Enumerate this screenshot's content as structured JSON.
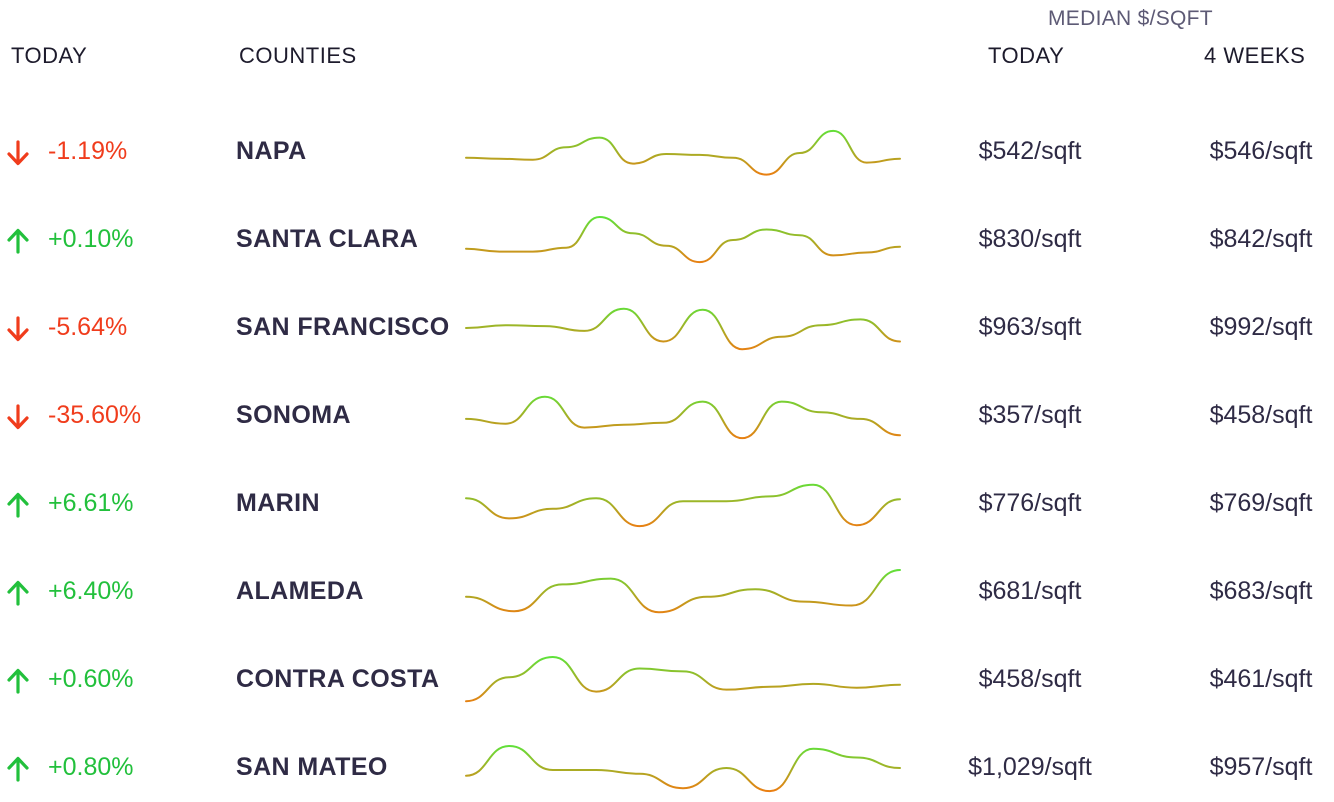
{
  "header": {
    "today_label": "TODAY",
    "counties_label": "COUNTIES",
    "median_label": "MEDIAN $/SQFT",
    "price_today_label": "TODAY",
    "price_weeks_label": "4 WEEKS"
  },
  "colors": {
    "up": "#22c03c",
    "down": "#f03c1c",
    "spark_high": "#5ee23a",
    "spark_low": "#f07a10",
    "text": "#2f2b45"
  },
  "icons": {
    "up": "arrow-up-icon",
    "down": "arrow-down-icon"
  },
  "rows": [
    {
      "change": "-1.19%",
      "direction": "down",
      "county": "NAPA",
      "today": "$542/sqft",
      "weeks": "$546/sqft",
      "trend": [
        0.4,
        0.38,
        0.36,
        0.62,
        0.82,
        0.28,
        0.48,
        0.46,
        0.4,
        0.05,
        0.5,
        0.96,
        0.3,
        0.38
      ]
    },
    {
      "change": "+0.10%",
      "direction": "up",
      "county": "SANTA CLARA",
      "today": "$830/sqft",
      "weeks": "$842/sqft",
      "trend": [
        0.34,
        0.28,
        0.28,
        0.36,
        1.0,
        0.66,
        0.4,
        0.06,
        0.52,
        0.74,
        0.62,
        0.2,
        0.26,
        0.38
      ]
    },
    {
      "change": "-5.64%",
      "direction": "down",
      "county": "SAN FRANCISCO",
      "today": "$963/sqft",
      "weeks": "$992/sqft",
      "trend": [
        0.52,
        0.58,
        0.56,
        0.46,
        0.92,
        0.24,
        0.9,
        0.08,
        0.34,
        0.58,
        0.7,
        0.24
      ]
    },
    {
      "change": "-35.60%",
      "direction": "down",
      "county": "SONOMA",
      "today": "$357/sqft",
      "weeks": "$458/sqft",
      "trend": [
        0.46,
        0.36,
        0.92,
        0.28,
        0.34,
        0.38,
        0.82,
        0.06,
        0.82,
        0.6,
        0.46,
        0.12
      ]
    },
    {
      "change": "+6.61%",
      "direction": "up",
      "county": "MARIN",
      "today": "$776/sqft",
      "weeks": "$769/sqft",
      "trend": [
        0.64,
        0.22,
        0.42,
        0.64,
        0.06,
        0.58,
        0.58,
        0.68,
        0.92,
        0.08,
        0.62
      ]
    },
    {
      "change": "+6.40%",
      "direction": "up",
      "county": "ALAMEDA",
      "today": "$681/sqft",
      "weeks": "$683/sqft",
      "trend": [
        0.42,
        0.12,
        0.68,
        0.8,
        0.1,
        0.42,
        0.58,
        0.32,
        0.24,
        0.98
      ]
    },
    {
      "change": "+0.60%",
      "direction": "up",
      "county": "CONTRA COSTA",
      "today": "$458/sqft",
      "weeks": "$461/sqft",
      "trend": [
        0.08,
        0.58,
        1.0,
        0.28,
        0.76,
        0.7,
        0.32,
        0.38,
        0.44,
        0.36,
        0.42
      ]
    },
    {
      "change": "+0.80%",
      "direction": "up",
      "county": "SAN MATEO",
      "today": "$1,029/sqft",
      "weeks": "$957/sqft",
      "trend": [
        0.36,
        0.98,
        0.48,
        0.48,
        0.4,
        0.1,
        0.52,
        0.04,
        0.92,
        0.74,
        0.52
      ]
    }
  ],
  "chart_data": {
    "type": "line",
    "title": "",
    "xlabel": "",
    "ylabel": "",
    "note": "Sparkline trends per county (relative values 0-1)",
    "series": [
      {
        "name": "NAPA",
        "values": [
          0.4,
          0.38,
          0.36,
          0.62,
          0.82,
          0.28,
          0.48,
          0.46,
          0.4,
          0.05,
          0.5,
          0.96,
          0.3,
          0.38
        ]
      },
      {
        "name": "SANTA CLARA",
        "values": [
          0.34,
          0.28,
          0.28,
          0.36,
          1.0,
          0.66,
          0.4,
          0.06,
          0.52,
          0.74,
          0.62,
          0.2,
          0.26,
          0.38
        ]
      },
      {
        "name": "SAN FRANCISCO",
        "values": [
          0.52,
          0.58,
          0.56,
          0.46,
          0.92,
          0.24,
          0.9,
          0.08,
          0.34,
          0.58,
          0.7,
          0.24
        ]
      },
      {
        "name": "SONOMA",
        "values": [
          0.46,
          0.36,
          0.92,
          0.28,
          0.34,
          0.38,
          0.82,
          0.06,
          0.82,
          0.6,
          0.46,
          0.12
        ]
      },
      {
        "name": "MARIN",
        "values": [
          0.64,
          0.22,
          0.42,
          0.64,
          0.06,
          0.58,
          0.58,
          0.68,
          0.92,
          0.08,
          0.62
        ]
      },
      {
        "name": "ALAMEDA",
        "values": [
          0.42,
          0.12,
          0.68,
          0.8,
          0.1,
          0.42,
          0.58,
          0.32,
          0.24,
          0.98
        ]
      },
      {
        "name": "CONTRA COSTA",
        "values": [
          0.08,
          0.58,
          1.0,
          0.28,
          0.76,
          0.7,
          0.32,
          0.38,
          0.44,
          0.36,
          0.42
        ]
      },
      {
        "name": "SAN MATEO",
        "values": [
          0.36,
          0.98,
          0.48,
          0.48,
          0.4,
          0.1,
          0.52,
          0.04,
          0.92,
          0.74,
          0.52
        ]
      }
    ]
  }
}
